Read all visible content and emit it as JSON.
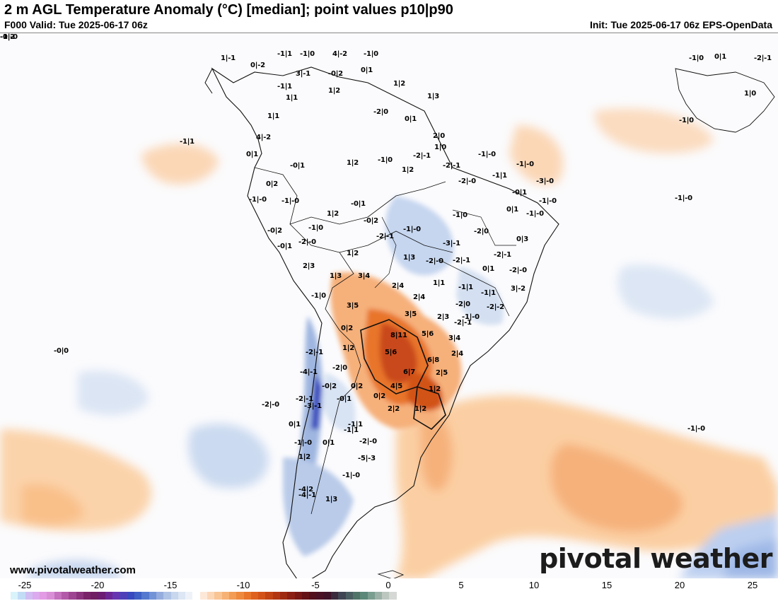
{
  "header": {
    "title": "2 m AGL Temperature Anomaly (°C) [median]; point values p10|p90",
    "valid": "F000 Valid: Tue 2025-06-17 06z",
    "init": "Init: Tue 2025-06-17 06z EPS-OpenData"
  },
  "footer": {
    "website": "www.pivotalweather.com",
    "brand": "pivotal weather"
  },
  "colorbar": {
    "ticks": [
      "-25",
      "-20",
      "-15",
      "-10",
      "-5",
      "0",
      "5",
      "10",
      "15",
      "20",
      "25"
    ],
    "colors": [
      "#d9f3fb",
      "#c3dcf6",
      "#d1bdf2",
      "#dcaaee",
      "#e29be4",
      "#d98fd6",
      "#c471be",
      "#b25aa8",
      "#9e4592",
      "#8c337e",
      "#7a236a",
      "#6f1f62",
      "#6c1c72",
      "#6c2694",
      "#6634b0",
      "#4e3fb8",
      "#3848be",
      "#3e5fc5",
      "#5479cf",
      "#7393d7",
      "#95adde",
      "#b0c4e6",
      "#c8d7ee",
      "#dce6f4",
      "#eef2f8",
      "#ffffff",
      "#fde8d8",
      "#fbd7b8",
      "#f9c594",
      "#f6b174",
      "#f29c56",
      "#ee8a3e",
      "#e8752a",
      "#de621d",
      "#d25218",
      "#c24314",
      "#b13612",
      "#9f2a12",
      "#8c1f13",
      "#781714",
      "#641216",
      "#520f1c",
      "#4a1024",
      "#3f1228",
      "#3a2a3c",
      "#3f4552",
      "#4a5e62",
      "#507468",
      "#5b8878",
      "#7a9e90",
      "#9cb2a8",
      "#bcc7c0",
      "#d5d8d4"
    ]
  },
  "points": [
    {
      "t": "1|-1"
    },
    {
      "t": "-1|1"
    },
    {
      "t": "-1|0"
    },
    {
      "t": "4|-2"
    },
    {
      "t": "-1|0"
    },
    {
      "t": "0|-2"
    },
    {
      "t": "3|-1"
    },
    {
      "t": "-0|2"
    },
    {
      "t": "0|1"
    },
    {
      "t": "-1|1"
    },
    {
      "t": "1|1"
    },
    {
      "t": "1|2"
    },
    {
      "t": "1|1"
    },
    {
      "t": "1|3"
    },
    {
      "t": "1|2"
    },
    {
      "t": "-2|0"
    },
    {
      "t": "0|1"
    },
    {
      "t": "2|0"
    },
    {
      "t": "4|-2"
    },
    {
      "t": "-1|1"
    },
    {
      "t": "1|0"
    },
    {
      "t": "0|1"
    },
    {
      "t": "-0|1"
    },
    {
      "t": "1|2"
    },
    {
      "t": "-1|0"
    },
    {
      "t": "-2|-1"
    },
    {
      "t": "1|2"
    },
    {
      "t": "-2|-1"
    },
    {
      "t": "-1|-0"
    },
    {
      "t": "-1|-0"
    },
    {
      "t": "0|2"
    },
    {
      "t": "-1|-0"
    },
    {
      "t": "-1|-0"
    },
    {
      "t": "-2|-0"
    },
    {
      "t": "-1|1"
    },
    {
      "t": "-3|-0"
    },
    {
      "t": "-1|-0"
    },
    {
      "t": "-0|1"
    },
    {
      "t": "-0|2"
    },
    {
      "t": "-0|1"
    },
    {
      "t": "-1|-0"
    },
    {
      "t": "-1|-0"
    },
    {
      "t": "-1|-0"
    },
    {
      "t": "-1|0"
    },
    {
      "t": "1|2"
    },
    {
      "t": "0|1"
    },
    {
      "t": "-1|0"
    },
    {
      "t": "-2|0"
    },
    {
      "t": "-0|2"
    },
    {
      "t": "-2|-1"
    },
    {
      "t": "-0|1"
    },
    {
      "t": "-2|-0"
    },
    {
      "t": "-3|-1"
    },
    {
      "t": "0|3"
    },
    {
      "t": "1|2"
    },
    {
      "t": "1|3"
    },
    {
      "t": "-2|-0"
    },
    {
      "t": "-2|-1"
    },
    {
      "t": "-2|-1"
    },
    {
      "t": "2|3"
    },
    {
      "t": "1|3"
    },
    {
      "t": "3|4"
    },
    {
      "t": "1|1"
    },
    {
      "t": "0|1"
    },
    {
      "t": "-2|-0"
    },
    {
      "t": "2|4"
    },
    {
      "t": "-1|1"
    },
    {
      "t": "-1|1"
    },
    {
      "t": "3|-2"
    },
    {
      "t": "-1|0"
    },
    {
      "t": "2|4"
    },
    {
      "t": "-2|0"
    },
    {
      "t": "-2|-2"
    },
    {
      "t": "3|5"
    },
    {
      "t": "3|5"
    },
    {
      "t": "2|3"
    },
    {
      "t": "-2|-1"
    },
    {
      "t": "-1|-0"
    },
    {
      "t": "0|2"
    },
    {
      "t": "8|11"
    },
    {
      "t": "5|6"
    },
    {
      "t": "3|4"
    },
    {
      "t": "-0|0"
    },
    {
      "t": "1|2"
    },
    {
      "t": "5|6"
    },
    {
      "t": "2|4"
    },
    {
      "t": "-2|-1"
    },
    {
      "t": "6|8"
    },
    {
      "t": "-4|-1"
    },
    {
      "t": "-2|0"
    },
    {
      "t": "6|7"
    },
    {
      "t": "2|5"
    },
    {
      "t": "-0|2"
    },
    {
      "t": "0|2"
    },
    {
      "t": "4|5"
    },
    {
      "t": "1|2"
    },
    {
      "t": "0|2"
    },
    {
      "t": "-2|-1"
    },
    {
      "t": "-3|-1"
    },
    {
      "t": "-0|1"
    },
    {
      "t": "2|2"
    },
    {
      "t": "1|2"
    },
    {
      "t": "0|1"
    },
    {
      "t": "-1|1"
    },
    {
      "t": "-1|-0"
    },
    {
      "t": "1|2"
    },
    {
      "t": "0|1"
    },
    {
      "t": "-2|-0"
    },
    {
      "t": "-5|-3"
    },
    {
      "t": "-1|-0"
    },
    {
      "t": "-4|2"
    },
    {
      "t": "-4|-1"
    },
    {
      "t": "1|3"
    },
    {
      "t": "-2|-0"
    },
    {
      "t": "-1|1"
    },
    {
      "t": "-1|-0"
    },
    {
      "t": "-1|0"
    },
    {
      "t": "-2|-1"
    },
    {
      "t": "1|0"
    },
    {
      "t": "-1|0"
    },
    {
      "t": "0|1"
    },
    {
      "t": "-0|2"
    },
    {
      "t": "-1|-0"
    }
  ]
}
